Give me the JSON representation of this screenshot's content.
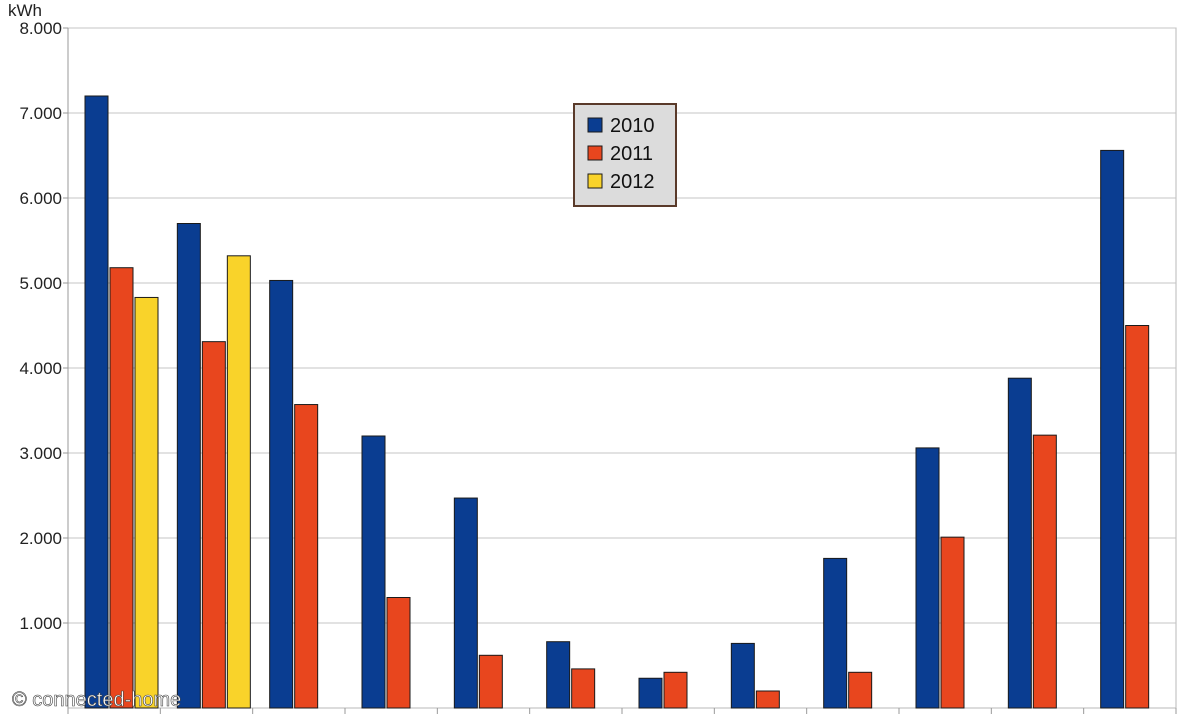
{
  "chart_data": {
    "type": "bar",
    "title": "",
    "ylabel": "kWh",
    "xlabel": "",
    "ylim": [
      0,
      8000
    ],
    "yticks": [
      {
        "value": 1000,
        "label": "1.000"
      },
      {
        "value": 2000,
        "label": "2.000"
      },
      {
        "value": 3000,
        "label": "3.000"
      },
      {
        "value": 4000,
        "label": "4.000"
      },
      {
        "value": 5000,
        "label": "5.000"
      },
      {
        "value": 6000,
        "label": "6.000"
      },
      {
        "value": 7000,
        "label": "7.000"
      },
      {
        "value": 8000,
        "label": "8.000"
      }
    ],
    "grid": true,
    "legend_position": "top-center",
    "categories": [
      "",
      "",
      "",
      "",
      "",
      "",
      "",
      "",
      "",
      "",
      "",
      ""
    ],
    "series": [
      {
        "name": "2010",
        "color": "#0a3d91",
        "values": [
          7200,
          5700,
          5030,
          3200,
          2470,
          780,
          350,
          760,
          1760,
          3060,
          3880,
          6560
        ]
      },
      {
        "name": "2011",
        "color": "#e8461e",
        "values": [
          5180,
          4310,
          3570,
          1300,
          620,
          460,
          420,
          200,
          420,
          2010,
          3210,
          4500
        ]
      },
      {
        "name": "2012",
        "color": "#f9d32a",
        "values": [
          4830,
          5320,
          null,
          null,
          null,
          null,
          null,
          null,
          null,
          null,
          null,
          null
        ]
      }
    ]
  },
  "watermark": "© connected-home"
}
